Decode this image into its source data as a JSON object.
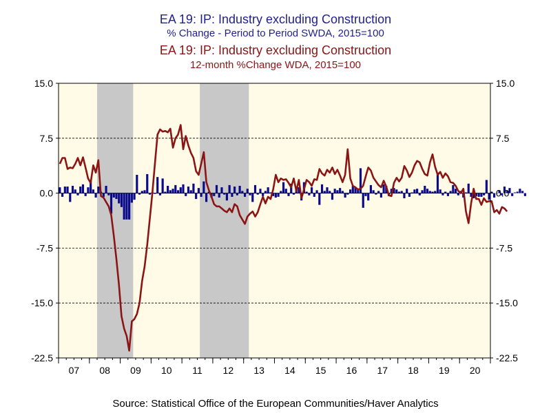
{
  "titles": {
    "line1": "EA 19: IP: Industry excluding Construction",
    "line2": "% Change - Period to Period     SWDA, 2015=100",
    "line3": "EA 19: IP: Industry excluding Construction",
    "line4": "12-month %Change       WDA, 2015=100"
  },
  "source": "Source:  Statistical Office of the European Communities/Haver Analytics",
  "colors": {
    "bars": "#0a0a8a",
    "line": "#8b1414",
    "plot_bg": "#fffbe6",
    "recession": "#c8c8c8"
  },
  "chart_data": {
    "type": "bar",
    "x_axis": {
      "labels": [
        "07",
        "08",
        "09",
        "10",
        "11",
        "12",
        "13",
        "14",
        "15",
        "16",
        "17",
        "18",
        "19",
        "20"
      ],
      "range": [
        2007.0,
        2021.0
      ]
    },
    "y_axis": {
      "range": [
        -22.5,
        15.0
      ],
      "ticks": [
        "15.0",
        "7.5",
        "0.0",
        "-7.5",
        "-15.0",
        "-22.5"
      ],
      "tick_values": [
        15.0,
        7.5,
        0.0,
        -7.5,
        -15.0,
        -22.5
      ]
    },
    "grid": "horizontal dashed at ±7.5, -15.0; solid at 0",
    "recession_shading": [
      [
        2008.25,
        2009.42
      ],
      [
        2011.58,
        2013.17
      ]
    ],
    "series": [
      {
        "type": "bar",
        "start": 2007.0,
        "step": 0.08333,
        "values": [
          0.8,
          -0.5,
          0.9,
          0.9,
          -1.2,
          1.0,
          0.5,
          -0.3,
          0.9,
          1.2,
          -0.4,
          0.8,
          1.7,
          0.5,
          -0.6,
          0.9,
          0.2,
          -0.5,
          1.0,
          -0.3,
          -2.8,
          -0.6,
          -0.8,
          -1.4,
          -1.9,
          -3.6,
          -3.6,
          -3.6,
          -1.3,
          -0.9,
          2.5,
          -0.2,
          0.3,
          0.4,
          2.6,
          -0.2,
          0.1,
          -0.1,
          2.2,
          -0.3,
          2.0,
          0.2,
          1.0,
          0.4,
          0.6,
          1.1,
          0.4,
          0.8,
          1.2,
          -0.4,
          0.9,
          0.4,
          1.3,
          -0.8,
          0.7,
          -0.5,
          1.6,
          -1.2,
          0.2,
          -0.6,
          -0.4,
          1.1,
          -0.6,
          0.8,
          -0.2,
          -1.0,
          1.1,
          -0.5,
          0.9,
          -0.3,
          1.0,
          0.3,
          -0.5,
          0.6,
          -0.3,
          -1.2,
          1.1,
          -0.2,
          0.6,
          -0.4,
          0.3,
          0.8,
          0.1,
          -0.4,
          -0.6,
          -0.5,
          0.3,
          1.5,
          0.6,
          -0.4,
          1.3,
          -0.2,
          0.5,
          0.8,
          -1.0,
          1.5,
          0.2,
          -0.3,
          0.8,
          -0.5,
          0.4,
          -1.6,
          1.2,
          0.3,
          0.8,
          0.3,
          -0.9,
          0.6,
          0.4,
          0.7,
          0.3,
          -0.6,
          -0.2,
          0.5,
          1.0,
          0.8,
          0.6,
          3.4,
          -2.0,
          -0.4,
          -1.0,
          1.1,
          0.4,
          -0.2,
          0.3,
          -0.6,
          1.2,
          1.0,
          -0.4,
          0.6,
          0.7,
          0.5,
          0.2,
          0.3,
          -0.7,
          0.6,
          -0.5,
          0.1,
          0.5,
          0.6,
          -0.3,
          0.4,
          1.0,
          0.6,
          0.3,
          0.2,
          0.3,
          2.8,
          0.5,
          -0.3,
          0.2,
          -0.4,
          0.3,
          1.1,
          0.6,
          -0.3,
          0.3,
          -0.6,
          0.1,
          1.3,
          -0.5,
          -0.7,
          -0.4,
          -0.5,
          -0.5,
          -0.3,
          1.8,
          -0.9,
          0.2,
          -0.6,
          0.0,
          0.4,
          -0.3,
          0.9,
          0.3,
          0.7,
          -0.4,
          0.1,
          0.2,
          0.6,
          0.3,
          -0.4
        ]
      },
      {
        "type": "line",
        "start": 2007.0,
        "step": 0.08333,
        "values": [
          4.0,
          4.8,
          4.8,
          3.3,
          3.5,
          3.4,
          4.0,
          4.8,
          3.8,
          4.9,
          3.5,
          2.0,
          1.4,
          3.8,
          2.8,
          4.5,
          -0.4,
          -0.6,
          -1.2,
          -1.8,
          -3.0,
          -5.8,
          -9.0,
          -12.5,
          -16.8,
          -18.5,
          -19.5,
          -21.5,
          -17.5,
          -17.2,
          -16.5,
          -15.0,
          -12.0,
          -10.0,
          -7.0,
          -3.5,
          0.0,
          4.0,
          8.0,
          8.7,
          8.4,
          8.5,
          8.3,
          8.8,
          6.2,
          7.5,
          8.0,
          9.3,
          6.0,
          7.8,
          6.5,
          5.5,
          4.8,
          3.0,
          2.5,
          4.0,
          5.6,
          1.5,
          0.4,
          -0.5,
          -1.5,
          -1.8,
          -1.8,
          -2.1,
          -2.4,
          -2.6,
          -2.1,
          -2.6,
          -1.5,
          -1.8,
          -3.0,
          -3.6,
          -4.2,
          -3.2,
          -2.8,
          -2.5,
          -3.2,
          -2.6,
          -1.5,
          -0.5,
          -1.4,
          -0.5,
          -0.8,
          0.5,
          2.5,
          1.5,
          2.0,
          1.8,
          1.9,
          1.4,
          0.8,
          2.0,
          0.3,
          1.8,
          -0.7,
          0.5,
          1.8,
          1.5,
          1.0,
          1.9,
          1.8,
          3.3,
          2.7,
          2.4,
          3.2,
          2.8,
          3.5,
          2.6,
          3.2,
          2.4,
          1.5,
          2.5,
          6.0,
          2.0,
          1.0,
          0.8,
          0.5,
          0.6,
          1.0,
          2.3,
          3.5,
          3.1,
          2.1,
          1.6,
          1.1,
          0.8,
          1.7,
          0.9,
          -0.3,
          -0.4,
          1.4,
          2.1,
          1.6,
          2.1,
          3.7,
          3.1,
          2.2,
          2.8,
          3.8,
          4.4,
          4.2,
          3.3,
          2.6,
          2.4,
          4.2,
          5.3,
          3.6,
          2.5,
          2.9,
          2.1,
          2.7,
          2.3,
          1.5,
          1.4,
          1.0,
          0.3,
          0.0,
          0.6,
          -2.5,
          -4.1,
          -1.4,
          0.6,
          -0.8,
          -0.8,
          -1.6,
          -0.7,
          -1.2,
          -1.1,
          -1.1,
          -2.6,
          -2.3,
          -2.8,
          -1.9,
          -2.1,
          -2.5
        ]
      }
    ]
  }
}
